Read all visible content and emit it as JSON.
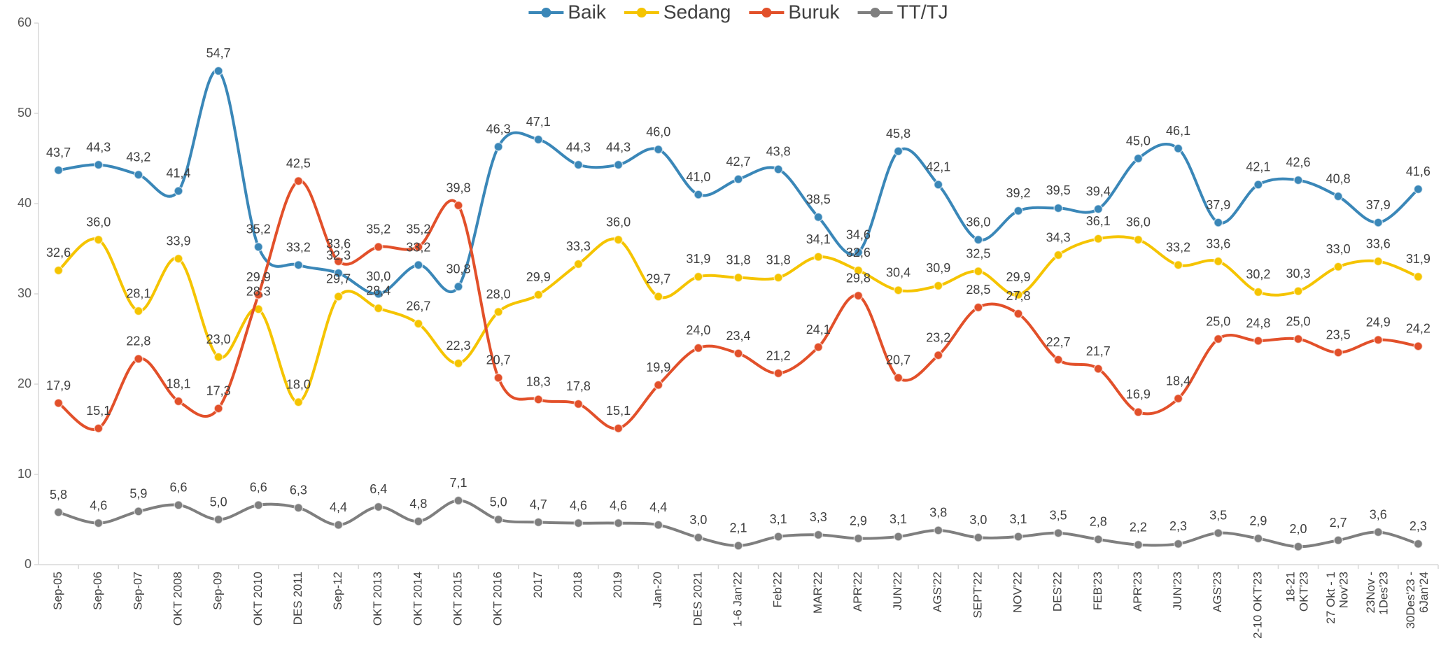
{
  "chart_data": {
    "type": "line",
    "categories": [
      "Sep-05",
      "Sep-06",
      "Sep-07",
      "OKT 2008",
      "Sep-09",
      "OKT 2010",
      "DES 2011",
      "Sep-12",
      "OKT 2013",
      "OKT 2014",
      "OKT 2015",
      "OKT 2016",
      "2017",
      "2018",
      "2019",
      "Jan-20",
      "DES 2021",
      "1-6 Jan'22",
      "Feb'22",
      "MAR'22",
      "APR'22",
      "JUN'22",
      "AGS'22",
      "SEPT'22",
      "NOV'22",
      "DES'22",
      "FEB'23",
      "APR'23",
      "JUN'23",
      "AGS'23",
      "2-10 OKT'23",
      "18-21\nOKT'23",
      "27 Okt - 1\nNov'23",
      "23Nov -\n1Des'23",
      "30Des'23 -\n6Jan'24"
    ],
    "ylim": [
      0,
      60
    ],
    "yticks": [
      0,
      10,
      20,
      30,
      40,
      50,
      60
    ],
    "series": [
      {
        "name": "Baik",
        "color": "#3a87b8",
        "values": [
          43.7,
          44.3,
          43.2,
          41.4,
          54.7,
          35.2,
          33.2,
          32.3,
          30.0,
          33.2,
          30.8,
          46.3,
          47.1,
          44.3,
          44.3,
          46.0,
          41.0,
          42.7,
          43.8,
          38.5,
          34.6,
          45.8,
          42.1,
          36.0,
          39.2,
          39.5,
          39.4,
          45.0,
          46.1,
          37.9,
          42.1,
          42.6,
          40.8,
          37.9,
          41.6
        ],
        "value_labels": [
          "43,7",
          "44,3",
          "43,2",
          "41,4",
          "54,7",
          "35,2",
          "33,2",
          "32,3",
          "30,0",
          "33,2",
          "30,8",
          "46,3",
          "47,1",
          "44,3",
          "44,3",
          "46,0",
          "41,0",
          "42,7",
          "43,8",
          "38,5",
          "34,6",
          "45,8",
          "42,1",
          "36,0",
          "39,2",
          "39,5",
          "39,4",
          "45,0",
          "46,1",
          "37,9",
          "42,1",
          "42,6",
          "40,8",
          "37,9",
          "41,6"
        ]
      },
      {
        "name": "Sedang",
        "color": "#f5c400",
        "values": [
          32.6,
          36.0,
          28.1,
          33.9,
          23.0,
          28.3,
          18.0,
          29.7,
          28.4,
          26.7,
          22.3,
          28.0,
          29.9,
          33.3,
          36.0,
          29.7,
          31.9,
          31.8,
          31.8,
          34.1,
          32.6,
          30.4,
          30.9,
          32.5,
          29.9,
          34.3,
          36.1,
          36.0,
          33.2,
          33.6,
          30.2,
          30.3,
          33.0,
          33.6,
          31.9
        ],
        "value_labels": [
          "32,6",
          "36,0",
          "28,1",
          "33,9",
          "23,0",
          "28,3",
          "18,0",
          "29,7",
          "28,4",
          "26,7",
          "22,3",
          "28,0",
          "29,9",
          "33,3",
          "36,0",
          "29,7",
          "31,9",
          "31,8",
          "31,8",
          "34,1",
          "32,6",
          "30,4",
          "30,9",
          "32,5",
          "29,9",
          "34,3",
          "36,1",
          "36,0",
          "33,2",
          "33,6",
          "30,2",
          "30,3",
          "33,0",
          "33,6",
          "31,9"
        ]
      },
      {
        "name": "Buruk",
        "color": "#e2502a",
        "values": [
          17.9,
          15.1,
          22.8,
          18.1,
          17.3,
          29.9,
          42.5,
          33.6,
          35.2,
          35.2,
          39.8,
          20.7,
          18.3,
          17.8,
          15.1,
          19.9,
          24.0,
          23.4,
          21.2,
          24.1,
          29.8,
          20.7,
          23.2,
          28.5,
          27.8,
          22.7,
          21.7,
          16.9,
          18.4,
          25.0,
          24.8,
          25.0,
          23.5,
          24.9,
          24.2
        ],
        "value_labels": [
          "17,9",
          "15,1",
          "22,8",
          "18,1",
          "17,3",
          "29,9",
          "42,5",
          "33,6",
          "35,2",
          "35,2",
          "39,8",
          "20,7",
          "18,3",
          "17,8",
          "15,1",
          "19,9",
          "24,0",
          "23,4",
          "21,2",
          "24,1",
          "29,8",
          "20,7",
          "23,2",
          "28,5",
          "27,8",
          "22,7",
          "21,7",
          "16,9",
          "18,4",
          "25,0",
          "24,8",
          "25,0",
          "23,5",
          "24,9",
          "24,2"
        ]
      },
      {
        "name": "TT/TJ",
        "color": "#7f7f7f",
        "values": [
          5.8,
          4.6,
          5.9,
          6.6,
          5.0,
          6.6,
          6.3,
          4.4,
          6.4,
          4.8,
          7.1,
          5.0,
          4.7,
          4.6,
          4.6,
          4.4,
          3.0,
          2.1,
          3.1,
          3.3,
          2.9,
          3.1,
          3.8,
          3.0,
          3.1,
          3.5,
          2.8,
          2.2,
          2.3,
          3.5,
          2.9,
          2.0,
          2.7,
          3.6,
          2.3
        ],
        "value_labels": [
          "5,8",
          "4,6",
          "5,9",
          "6,6",
          "5,0",
          "6,6",
          "6,3",
          "4,4",
          "6,4",
          "4,8",
          "7,1",
          "5,0",
          "4,7",
          "4,6",
          "4,6",
          "4,4",
          "3,0",
          "2,1",
          "3,1",
          "3,3",
          "2,9",
          "3,1",
          "3,8",
          "3,0",
          "3,1",
          "3,5",
          "2,8",
          "2,2",
          "2,3",
          "3,5",
          "2,9",
          "2,0",
          "2,7",
          "3,6",
          "2,3"
        ]
      }
    ]
  }
}
